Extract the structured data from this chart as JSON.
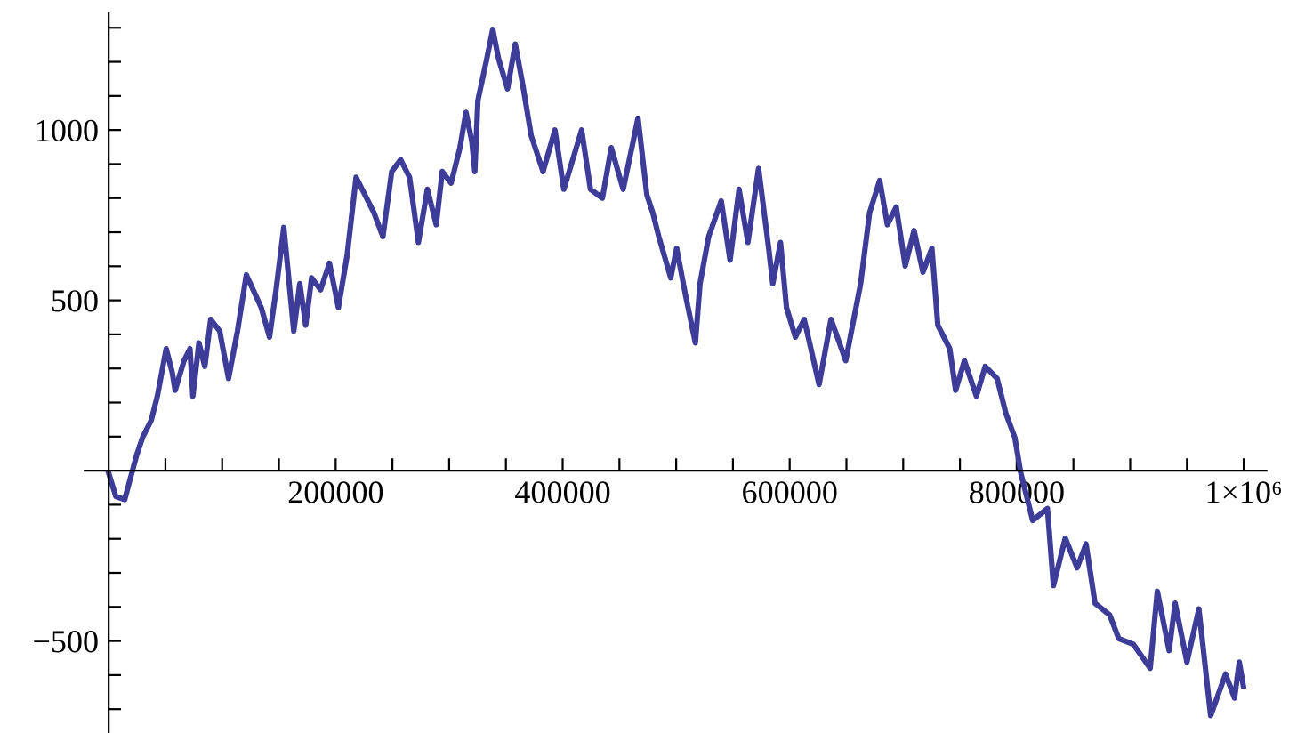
{
  "chart_data": {
    "type": "line",
    "x": [
      0,
      6300,
      14100,
      20400,
      24600,
      29800,
      37600,
      42900,
      50700,
      56000,
      58600,
      66400,
      71600,
      74200,
      79500,
      84700,
      89900,
      97800,
      105600,
      113500,
      121300,
      129600,
      134400,
      141700,
      147500,
      154300,
      163100,
      168400,
      173600,
      178800,
      186700,
      194500,
      202400,
      210200,
      218000,
      225900,
      233700,
      241600,
      249400,
      257200,
      265100,
      272900,
      280800,
      288600,
      293900,
      301700,
      309500,
      314800,
      320000,
      322600,
      325300,
      333100,
      338400,
      343600,
      351400,
      358200,
      364500,
      372300,
      382700,
      393200,
      401000,
      416700,
      424500,
      435000,
      442800,
      453300,
      466400,
      474200,
      479400,
      484700,
      495200,
      500400,
      508300,
      516900,
      521000,
      528600,
      539700,
      547500,
      555400,
      563200,
      572600,
      581500,
      585100,
      591900,
      597200,
      605000,
      612800,
      625900,
      636400,
      649400,
      662500,
      670400,
      679300,
      686100,
      693900,
      701800,
      709600,
      717400,
      725300,
      730500,
      741000,
      746200,
      754000,
      764500,
      772300,
      782700,
      790600,
      798400,
      803600,
      814100,
      827100,
      832400,
      842800,
      853300,
      861100,
      869000,
      882000,
      889900,
      902900,
      917600,
      923900,
      934300,
      939600,
      950000,
      960500,
      970900,
      984000,
      991900,
      996100,
      999700
    ],
    "series": [
      {
        "color": "#3d3d99",
        "values": [
          -7,
          -76,
          -85,
          -7,
          45,
          97,
          149,
          219,
          358,
          288,
          236,
          323,
          358,
          219,
          375,
          306,
          444,
          410,
          271,
          410,
          575,
          514,
          479,
          392,
          531,
          714,
          410,
          549,
          427,
          566,
          531,
          609,
          479,
          635,
          861,
          809,
          757,
          687,
          878,
          913,
          861,
          670,
          826,
          722,
          878,
          844,
          948,
          1052,
          966,
          878,
          1087,
          1208,
          1295,
          1208,
          1121,
          1252,
          1139,
          983,
          878,
          1000,
          826,
          1000,
          826,
          800,
          948,
          826,
          1035,
          809,
          757,
          687,
          566,
          653,
          514,
          375,
          549,
          687,
          792,
          618,
          826,
          670,
          887,
          653,
          549,
          670,
          479,
          392,
          444,
          253,
          444,
          323,
          549,
          757,
          852,
          722,
          774,
          601,
          705,
          583,
          653,
          427,
          358,
          236,
          323,
          219,
          306,
          271,
          167,
          97,
          -7,
          -146,
          -111,
          -337,
          -198,
          -285,
          -215,
          -389,
          -424,
          -493,
          -510,
          -580,
          -354,
          -528,
          -389,
          -562,
          -406,
          -719,
          -597,
          -667,
          -562,
          -632
        ]
      }
    ],
    "xlim": [
      -21000,
      1020000
    ],
    "ylim": [
      -770,
      1345
    ],
    "xticks": [
      {
        "value": 50000,
        "label": null
      },
      {
        "value": 100000,
        "label": null
      },
      {
        "value": 150000,
        "label": null
      },
      200000,
      {
        "value": 250000,
        "label": null
      },
      {
        "value": 300000,
        "label": null
      },
      {
        "value": 350000,
        "label": null
      },
      400000,
      {
        "value": 450000,
        "label": null
      },
      {
        "value": 500000,
        "label": null
      },
      {
        "value": 550000,
        "label": null
      },
      600000,
      {
        "value": 650000,
        "label": null
      },
      {
        "value": 700000,
        "label": null
      },
      {
        "value": 750000,
        "label": null
      },
      800000,
      {
        "value": 850000,
        "label": null
      },
      {
        "value": 900000,
        "label": null
      },
      {
        "value": 950000,
        "label": null
      },
      {
        "value": 1000000,
        "label": "1×10⁶"
      }
    ],
    "yticks": [
      {
        "value": -700,
        "label": null
      },
      {
        "value": -600,
        "label": null
      },
      {
        "value": -500,
        "label": "−500"
      },
      {
        "value": -400,
        "label": null
      },
      {
        "value": -300,
        "label": null
      },
      {
        "value": -200,
        "label": null
      },
      {
        "value": -100,
        "label": null
      },
      {
        "value": 100,
        "label": null
      },
      {
        "value": 200,
        "label": null
      },
      {
        "value": 300,
        "label": null
      },
      {
        "value": 400,
        "label": null
      },
      500,
      {
        "value": 600,
        "label": null
      },
      {
        "value": 700,
        "label": null
      },
      {
        "value": 800,
        "label": null
      },
      {
        "value": 900,
        "label": null
      },
      1000,
      {
        "value": 1100,
        "label": null
      },
      {
        "value": 1200,
        "label": null
      },
      {
        "value": 1300,
        "label": null
      }
    ],
    "grid": false,
    "marker": "none",
    "line_style": "solid"
  }
}
